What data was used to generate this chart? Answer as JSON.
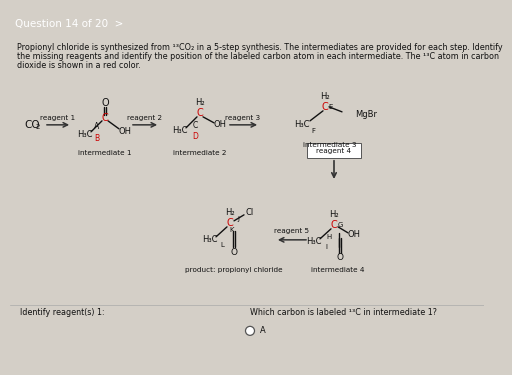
{
  "bg_color": "#d4cfc7",
  "header_bg": "#1a1a1a",
  "title_text": "Question 14 of 20  >",
  "white_bg": "#e8e4dc",
  "para1": "Propionyl chloride is synthesized from ¹³CO₂ in a 5-step synthesis. The intermediates are provided for each step. Identify",
  "para2": "the missing reagents and identify the position of the labeled carbon atom in each intermediate. The ¹³C atom in carbon",
  "para3": "dioxide is shown in a red color.",
  "bottom_text1": "Identify reagent(s) 1:",
  "bottom_text2": "Which carbon is labeled ¹³C in intermediate 1?",
  "radio_label": "A",
  "fc": "#111111",
  "rc": "#cc0000",
  "ac": "#222222"
}
